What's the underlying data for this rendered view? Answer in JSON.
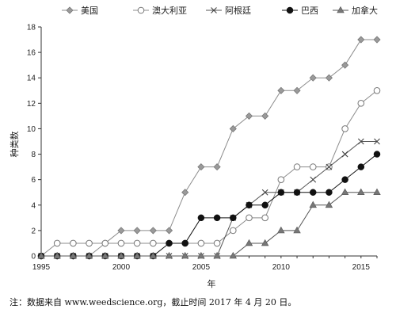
{
  "chart_data": {
    "type": "line",
    "xlabel": "年",
    "ylabel": "种类数",
    "xlim": [
      1995,
      2016
    ],
    "ylim": [
      0,
      18
    ],
    "x_ticks": [
      1995,
      2000,
      2005,
      2010,
      2015
    ],
    "y_ticks": [
      0,
      2,
      4,
      6,
      8,
      10,
      12,
      14,
      16,
      18
    ],
    "grid": false,
    "legend_position": "top",
    "x": [
      1995,
      1996,
      1997,
      1998,
      1999,
      2000,
      2001,
      2002,
      2003,
      2004,
      2005,
      2006,
      2007,
      2008,
      2009,
      2010,
      2011,
      2012,
      2013,
      2014,
      2015,
      2016
    ],
    "series": [
      {
        "name": "美国",
        "marker": "diamond",
        "color": "#8c8c8c",
        "values": [
          0,
          0,
          0,
          0,
          1,
          2,
          2,
          2,
          2,
          5,
          7,
          7,
          10,
          11,
          11,
          13,
          13,
          14,
          14,
          15,
          17,
          17
        ]
      },
      {
        "name": "澳大利亚",
        "marker": "circle-open",
        "color": "#8c8c8c",
        "values": [
          0,
          1,
          1,
          1,
          1,
          1,
          1,
          1,
          1,
          1,
          1,
          1,
          2,
          3,
          3,
          6,
          7,
          7,
          7,
          10,
          12,
          13
        ]
      },
      {
        "name": "阿根廷",
        "marker": "x",
        "color": "#555555",
        "values": [
          0,
          0,
          0,
          0,
          0,
          0,
          0,
          0,
          0,
          0,
          0,
          0,
          3,
          4,
          5,
          5,
          5,
          6,
          7,
          8,
          9,
          9
        ]
      },
      {
        "name": "巴西",
        "marker": "circle-filled",
        "color": "#111111",
        "values": [
          0,
          0,
          0,
          0,
          0,
          0,
          0,
          0,
          1,
          1,
          3,
          3,
          3,
          4,
          4,
          5,
          5,
          5,
          5,
          6,
          7,
          8
        ]
      },
      {
        "name": "加拿大",
        "marker": "triangle",
        "color": "#555555",
        "values": [
          0,
          0,
          0,
          0,
          0,
          0,
          0,
          0,
          0,
          0,
          0,
          0,
          0,
          1,
          1,
          2,
          2,
          4,
          4,
          5,
          5,
          5
        ]
      }
    ]
  },
  "note": "注：数据来自 www.weedscience.org，截止时间 2017 年 4 月 20 日。"
}
